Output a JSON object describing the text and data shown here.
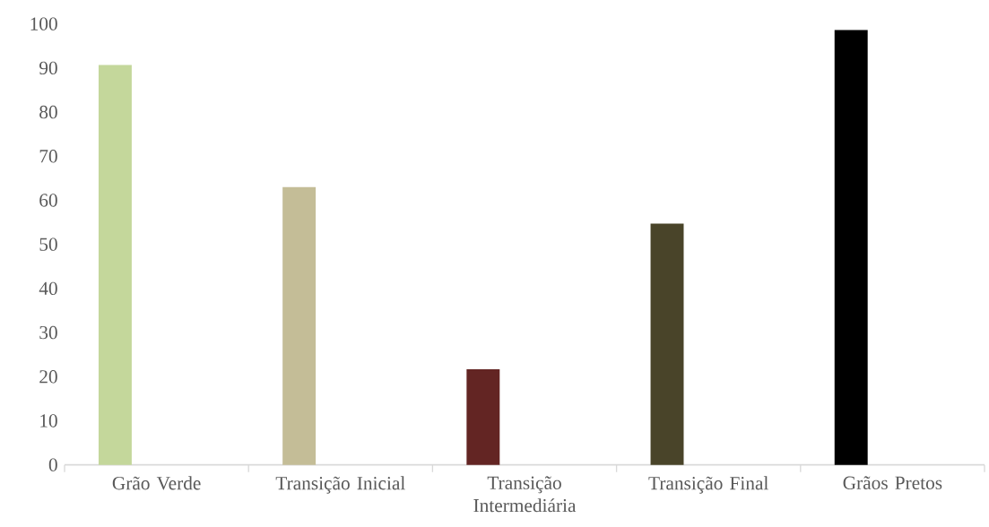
{
  "chart_data": {
    "type": "bar",
    "categories": [
      "Grão Verde",
      "Transição Inicial",
      "Transição Intermediária",
      "Transição Final",
      "Grãos Pretos"
    ],
    "values": [
      90.7,
      63,
      21.7,
      54.7,
      98.6
    ],
    "colors": [
      "#c4d79b",
      "#c4bd97",
      "#632523",
      "#494429",
      "#000000"
    ],
    "ylim": [
      0,
      100
    ],
    "yticks": [
      0,
      10,
      20,
      30,
      40,
      50,
      60,
      70,
      80,
      90,
      100
    ]
  }
}
